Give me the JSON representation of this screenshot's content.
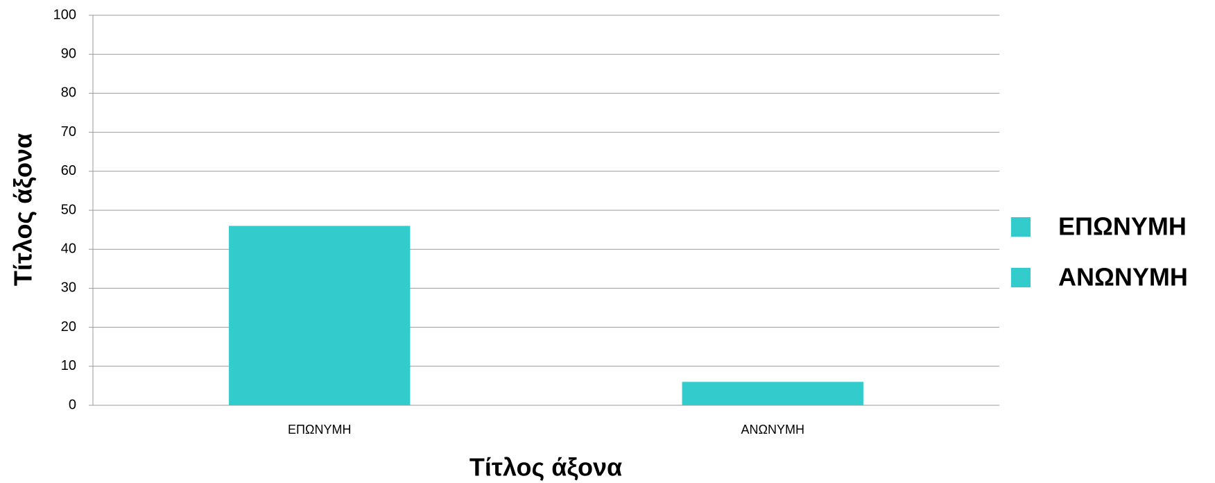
{
  "chart_data": {
    "type": "bar",
    "categories": [
      "ΕΠΩΝΥΜΗ",
      "ΑΝΩΝΥΜΗ"
    ],
    "values": [
      46,
      6
    ],
    "color": "#33cccc",
    "x_label": "Τίτλος άξονα",
    "y_label": "Τίτλος άξονα",
    "ylim": [
      0,
      100
    ],
    "yticks": [
      0,
      10,
      20,
      30,
      40,
      50,
      60,
      70,
      80,
      90,
      100
    ],
    "grid": true,
    "legend": "right"
  }
}
